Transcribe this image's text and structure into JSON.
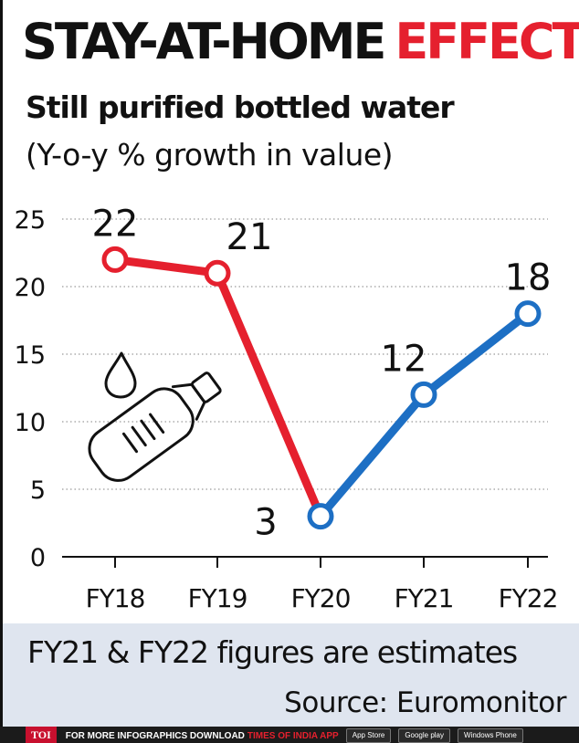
{
  "headline": {
    "main": "STAY-AT-HOME",
    "accent": "EFFECT"
  },
  "subtitle": "Still purified bottled water",
  "unit_note": "(Y-o-y % growth in value)",
  "chart_data": {
    "type": "line",
    "categories": [
      "FY18",
      "FY19",
      "FY20",
      "FY21",
      "FY22"
    ],
    "values": [
      22,
      21,
      3,
      12,
      18
    ],
    "data_labels": [
      "22",
      "21",
      "3",
      "12",
      "18"
    ],
    "ylim": [
      0,
      25
    ],
    "yticks": [
      0,
      5,
      10,
      15,
      20,
      25
    ],
    "ytick_labels": [
      "0",
      "5",
      "10",
      "15",
      "20",
      "25"
    ],
    "grid": "horizontal-dotted",
    "segments": [
      {
        "from": 0,
        "to": 2,
        "color": "#e5202e"
      },
      {
        "from": 2,
        "to": 4,
        "color": "#1d6fc4"
      }
    ],
    "decoration_icon": "water-bottle-icon"
  },
  "note": "FY21 & FY22 figures are estimates",
  "source": "Source: Euromonitor",
  "footer": {
    "logo": "TOI",
    "text1": "FOR MORE  INFOGRAPHICS DOWNLOAD",
    "text2": "TIMES OF INDIA  APP",
    "badges": [
      "App Store",
      "Google play",
      "Windows Phone"
    ]
  }
}
